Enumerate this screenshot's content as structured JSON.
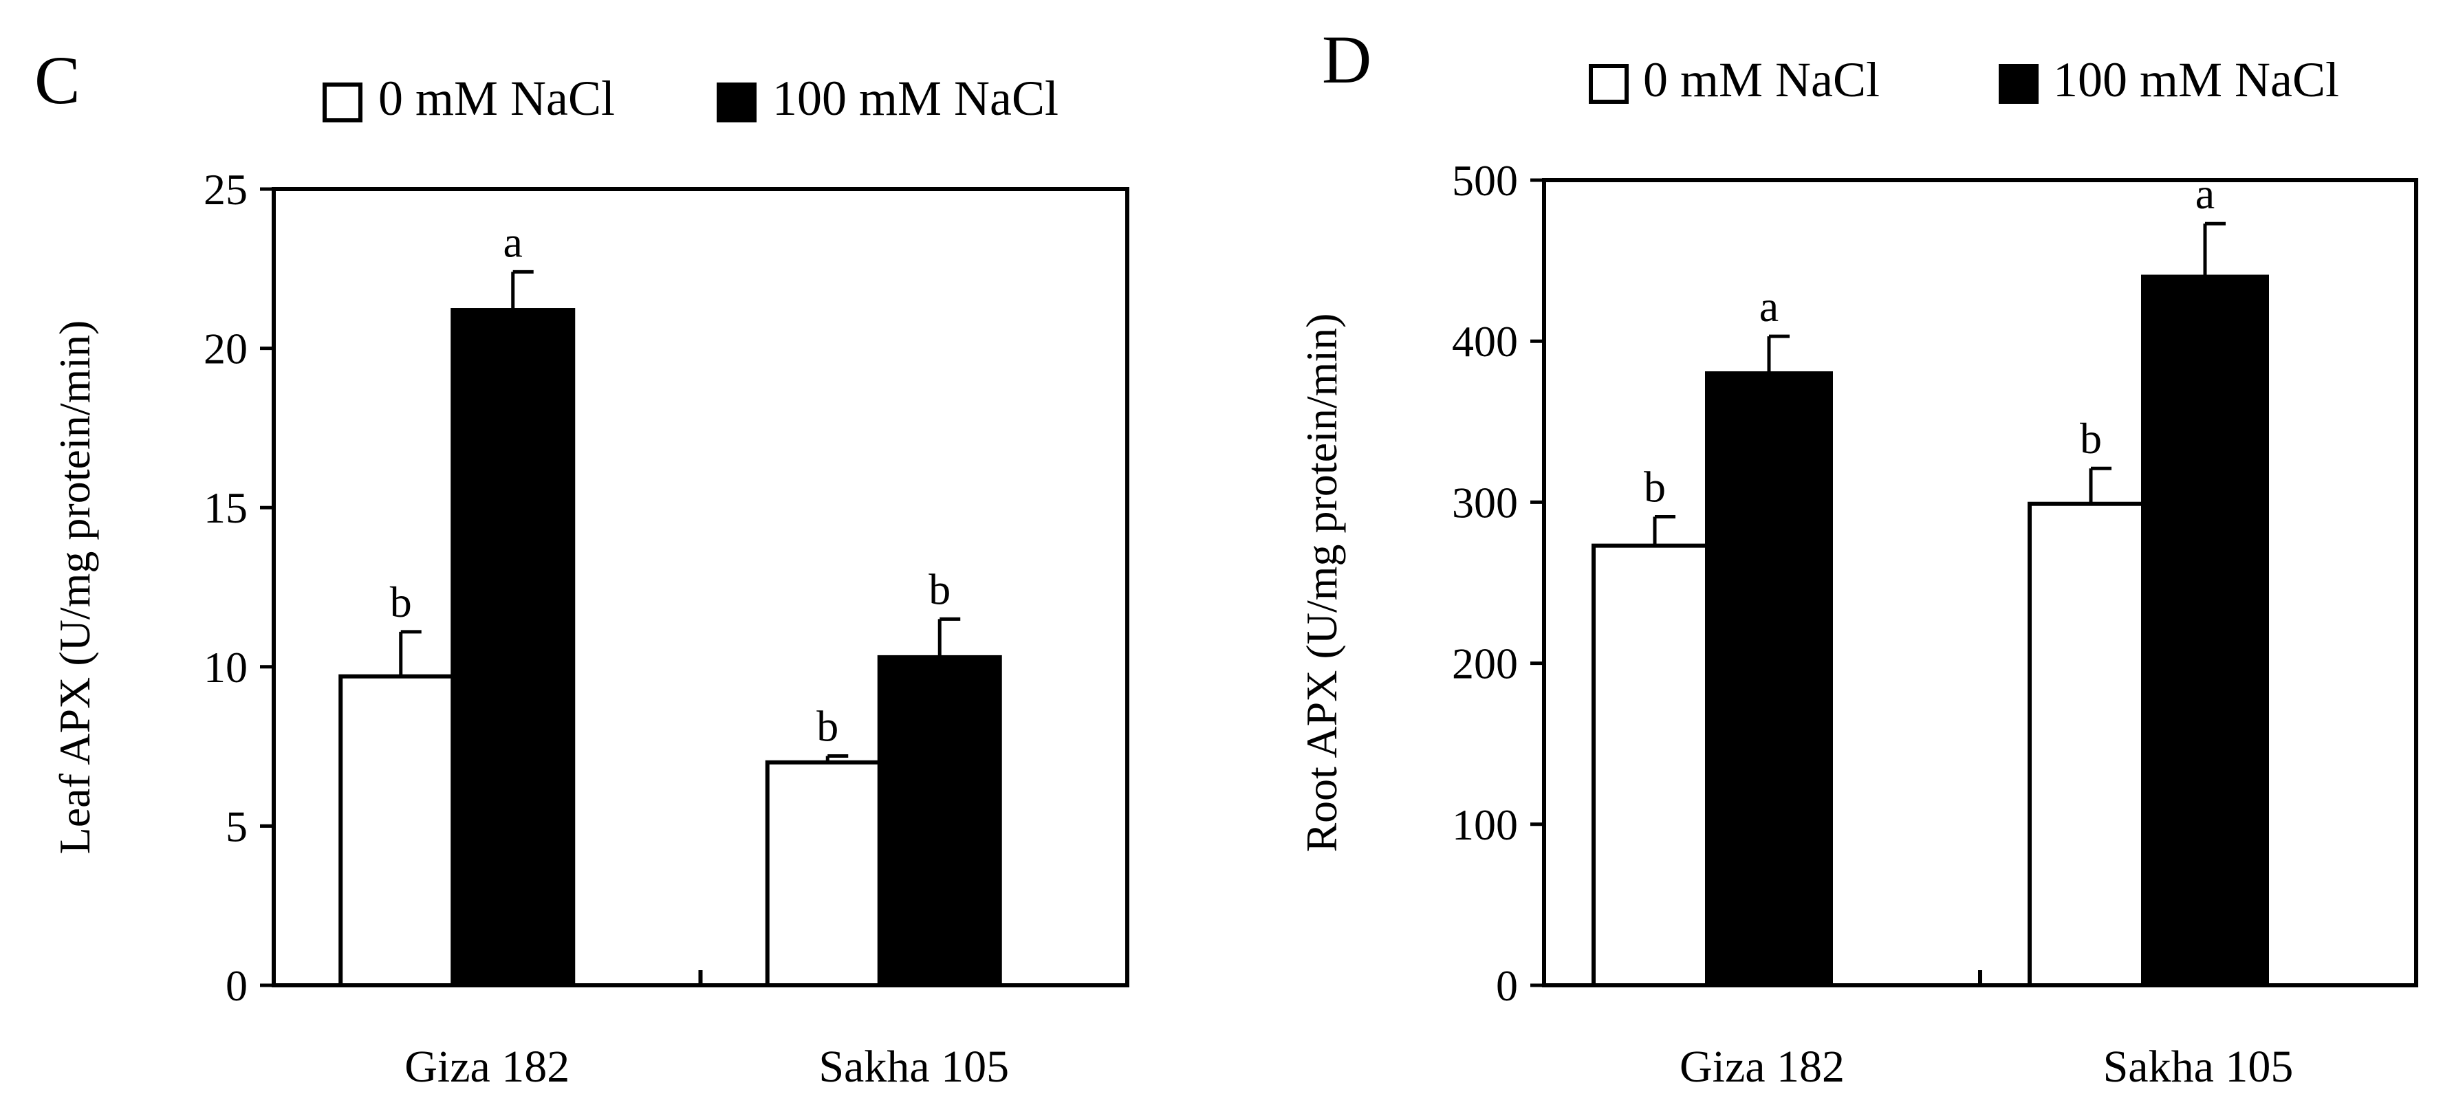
{
  "chart_data": [
    {
      "id": "C",
      "panel_label": "C",
      "type": "bar",
      "ylabel": "Leaf APX (U/mg protein/min)",
      "xlabel": "",
      "ylim": [
        0,
        25
      ],
      "yticks": [
        0,
        5,
        10,
        15,
        20,
        25
      ],
      "categories": [
        "Giza 182",
        "Sakha 105"
      ],
      "series": [
        {
          "name": "0 mM NaCl",
          "fill": "#ffffff",
          "values": [
            9.7,
            7.0
          ],
          "errors": [
            1.4,
            0.2
          ],
          "labels": [
            "b",
            "b"
          ]
        },
        {
          "name": "100 mM NaCl",
          "fill": "#000000",
          "values": [
            21.2,
            10.3
          ],
          "errors": [
            1.2,
            1.2
          ],
          "labels": [
            "a",
            "b"
          ]
        }
      ],
      "legend_position": "top"
    },
    {
      "id": "D",
      "panel_label": "D",
      "type": "bar",
      "ylabel": "Root APX (U/mg protein/min)",
      "xlabel": "",
      "ylim": [
        0,
        500
      ],
      "yticks": [
        0,
        100,
        200,
        300,
        400,
        500
      ],
      "categories": [
        "Giza 182",
        "Sakha 105"
      ],
      "series": [
        {
          "name": "0 mM NaCl",
          "fill": "#ffffff",
          "values": [
            273,
            299
          ],
          "errors": [
            18,
            22
          ],
          "labels": [
            "b",
            "b"
          ]
        },
        {
          "name": "100 mM NaCl",
          "fill": "#000000",
          "values": [
            380,
            440
          ],
          "errors": [
            23,
            33
          ],
          "labels": [
            "a",
            "a"
          ]
        }
      ],
      "legend_position": "top"
    }
  ]
}
